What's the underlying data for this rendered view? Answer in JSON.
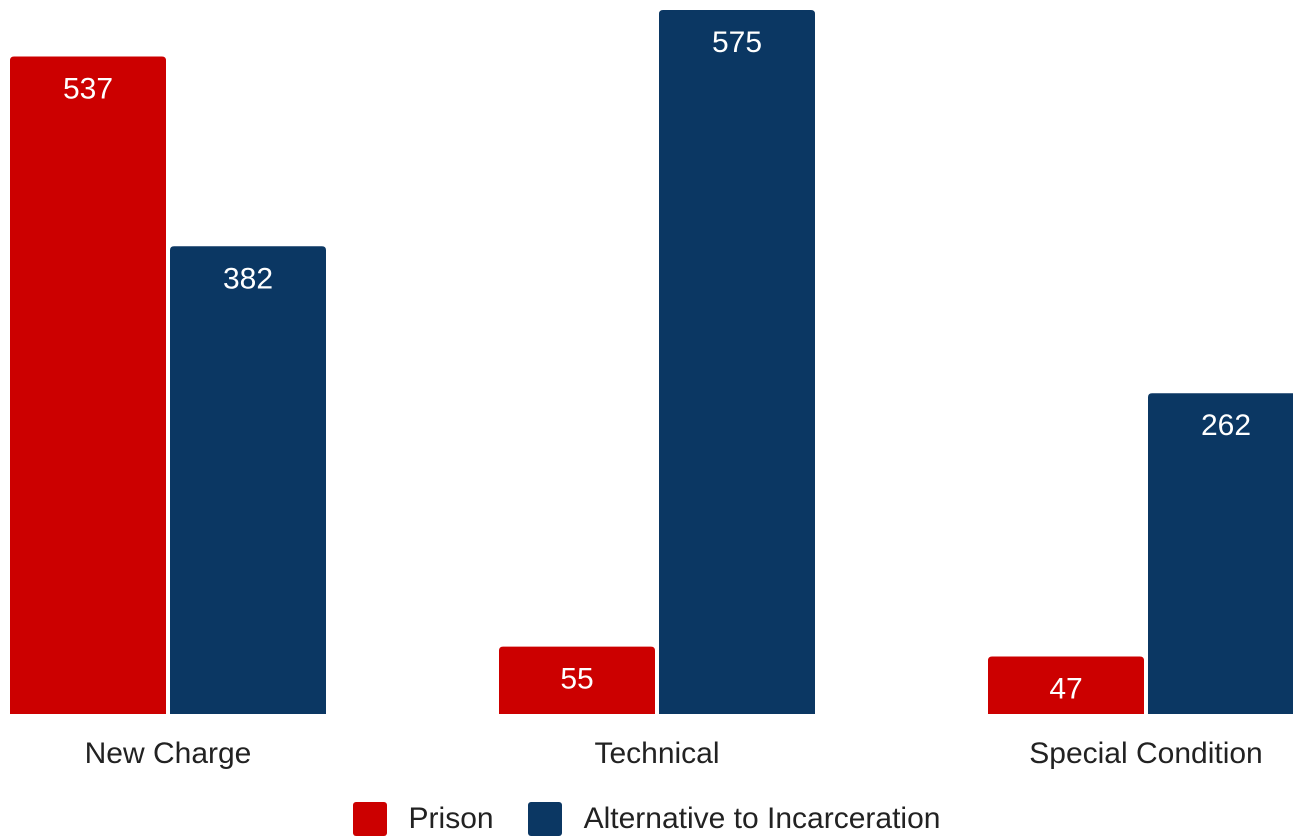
{
  "chart_data": {
    "type": "bar",
    "categories": [
      "New Charge",
      "Technical",
      "Special Condition"
    ],
    "series": [
      {
        "name": "Prison",
        "values": [
          537,
          55,
          47
        ],
        "color": "#cc0000"
      },
      {
        "name": "Alternative to Incarceration",
        "values": [
          382,
          575,
          262
        ],
        "color": "#0b3763"
      }
    ],
    "ylim": [
      0,
      575
    ],
    "grid": false,
    "data_labels": true,
    "data_label_color": "#ffffff",
    "legend_position": "bottom-center"
  }
}
